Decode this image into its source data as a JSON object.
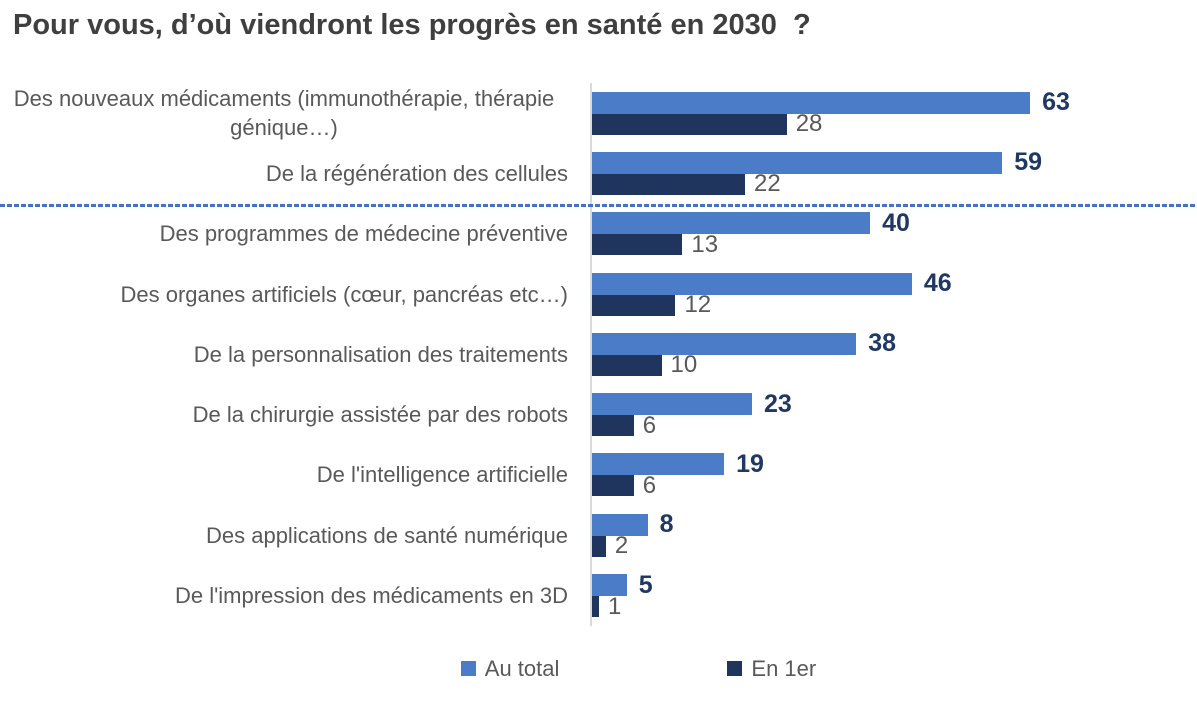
{
  "chart_data": {
    "type": "bar",
    "orientation": "horizontal",
    "title": "Pour vous, d’où viendront les progrès en santé en 2030  ?",
    "categories": [
      "Des nouveaux médicaments (immunothérapie, thérapie génique…)",
      "De la régénération des cellules",
      "Des programmes de médecine préventive",
      "Des organes artificiels (cœur, pancréas etc…)",
      "De la personnalisation des traitements",
      "De la chirurgie assistée par des robots",
      "De l'intelligence artificielle",
      "Des applications de santé numérique",
      "De l'impression des médicaments en 3D"
    ],
    "series": [
      {
        "name": "Au total",
        "color": "#4a7cc7",
        "label_color": "#1f3864",
        "label_bold": true,
        "values": [
          63,
          59,
          40,
          46,
          38,
          23,
          19,
          8,
          5
        ]
      },
      {
        "name": "En 1er",
        "color": "#1f355e",
        "label_color": "#595959",
        "label_bold": false,
        "values": [
          28,
          22,
          13,
          12,
          10,
          6,
          6,
          2,
          1
        ]
      }
    ],
    "xlim": [
      0,
      87
    ],
    "grid": false,
    "legend_position": "bottom",
    "separator": {
      "after_category_index": 1,
      "style": "dashed",
      "color": "#4472c4"
    }
  },
  "colors": {
    "title": "#3f3f3f",
    "category_label": "#595959",
    "axis_line": "#d9d9d9",
    "background": "#ffffff"
  }
}
